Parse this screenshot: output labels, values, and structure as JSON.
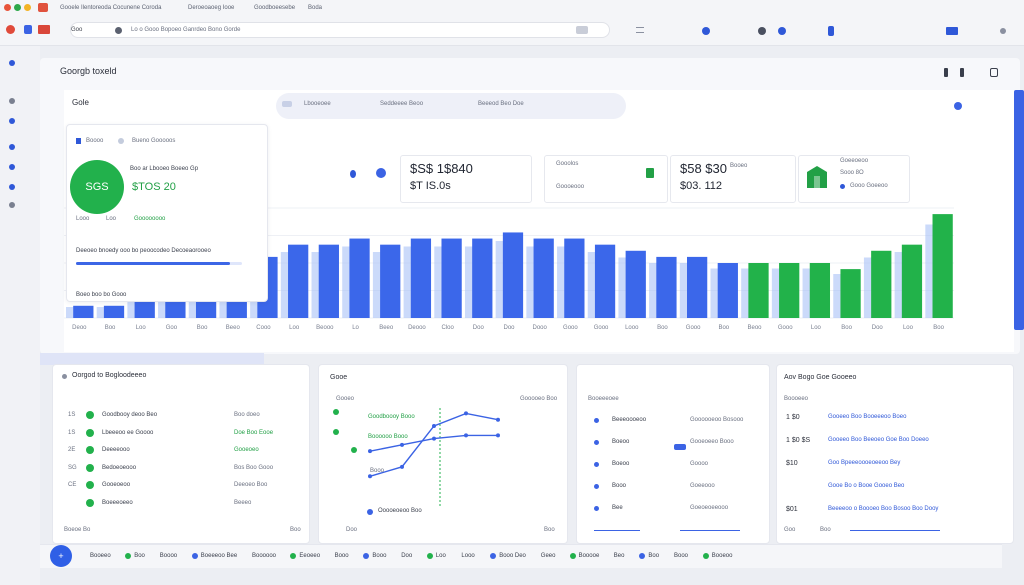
{
  "browser": {
    "tabs": [
      "Gooele Ilentoreoda Cocunene Coroda",
      "Deroeoaoeg Iooe",
      "Goodboeesebe",
      "Boda"
    ],
    "address": "Goo",
    "omnibox_hint": "Lo o Gooo Bopoeo Ganrdeo Bono Gorde"
  },
  "app": {
    "title": "Goorgb toxeld",
    "section": "Gole",
    "segments": [
      "Lbooeoee",
      "Seddeeee Beoo",
      "Beeeod Beo Doe"
    ]
  },
  "kpi": {
    "circle_value": "SGS",
    "header": "Bueno Gooooos",
    "label": "Boooo",
    "sublabel": "Boo ar Lbooeo Boeeo Gp",
    "value": "$TOS 20",
    "tag_left": "Looo",
    "tag_mid": "Loo",
    "tag_right": "Goooooooo",
    "progress_label": "Deeoeo bnoedy ooo bo peoocodeo Decoeaorooeo",
    "progress": 0.93,
    "footer": "Boeo boo bo Gooo"
  },
  "stats": [
    {
      "value": "$S$ 1$840",
      "sub": "$T IS.0s"
    },
    {
      "label": "Gooolos",
      "sub": "Goooeooo"
    },
    {
      "value": "$58 $30",
      "suffix": "Booeo",
      "sub": "$03. 112"
    },
    {
      "label": "Goeeoeoo",
      "sub": "Sooo 8O",
      "sub2": "Gooo Goeeoo"
    }
  ],
  "chart_data": {
    "type": "bar",
    "categories": [
      "Deoo",
      "Boo",
      "Loo",
      "Goo",
      "Boo",
      "Beeo",
      "Cooo",
      "Loo",
      "Beooo",
      "Lo",
      "Beeo",
      "Deooo",
      "Cloo",
      "Doo",
      "Doo",
      "Dooo",
      "Gooo",
      "Gooo",
      "Looo",
      "Boo",
      "Gooo",
      "Boo",
      "Beoo",
      "Gooo",
      "Loo",
      "Boo",
      "Doo",
      "Loo",
      "Boo"
    ],
    "series": [
      {
        "values": [
          2,
          2,
          4,
          4,
          3,
          3,
          10,
          12,
          12,
          13,
          12,
          13,
          13,
          13,
          14,
          13,
          13,
          12,
          11,
          10,
          10,
          9,
          9,
          9,
          9,
          8,
          11,
          12,
          17
        ]
      }
    ],
    "highlight_start": 22,
    "colors": {
      "blue": "#3b67ea",
      "light": "#a9c1f7",
      "green": "#22b24a"
    },
    "ylim": [
      0,
      18
    ],
    "grid": true
  },
  "panels": {
    "goals": {
      "title": "Oorgod to Bogloodeeeo",
      "rows": [
        {
          "id": "1S",
          "name": "Goodbooy deoo Beo",
          "status": "Boo doeo"
        },
        {
          "id": "1S",
          "name": "Lbeeeoo ee Goooo",
          "status": "Doe Boo Eooe"
        },
        {
          "id": "2E",
          "name": "Deeeeooo",
          "status": "Gooeoeo"
        },
        {
          "id": "SG",
          "name": "Bedoeoeooo",
          "status": "Bos Boo Gooo"
        },
        {
          "id": "CE",
          "name": "Gooeoeoo",
          "status": "Deeoeo Boo"
        },
        {
          "id": "",
          "name": "Boeeeoeeo",
          "status": "Beeeo"
        }
      ],
      "footer_left": "Boeoe Bo",
      "footer_right": "Boo"
    },
    "trend": {
      "title": "Gooe",
      "legend": "Gooeo",
      "legend_right": "Gooooeo Boo",
      "items": [
        "Goodboooy Booo",
        "Boooooo Booo",
        "Booo"
      ],
      "footer": "Ooooeoeoo Boo",
      "axis": [
        "Doo",
        "Boo"
      ],
      "line_a": [
        12,
        15,
        28,
        32,
        30
      ],
      "line_b": [
        20,
        22,
        24,
        25,
        25
      ]
    },
    "list": {
      "header": "Booeeeoee",
      "rows": [
        {
          "name": "Beeeoooeoo",
          "value": "Goooooeoo Bosooo"
        },
        {
          "name": "Boeoo",
          "value": "Gooeoeeo Booo"
        },
        {
          "name": "Boeoo",
          "value": "Goooo"
        },
        {
          "name": "Booo",
          "value": "Goeeooo"
        },
        {
          "name": "Bee",
          "value": "Goeoeoeeooo"
        }
      ]
    },
    "feed": {
      "title": "Aov Bogo Goe Gooeeo",
      "header_left": "Boooeeo",
      "rows": [
        {
          "id": "1 $0",
          "text": "Gooeeo Boo Booeeeoo Boeo"
        },
        {
          "id": "1 $0 $S",
          "text": "Gooeeo Boo Beeoeo Goe Boo Doeeo"
        },
        {
          "id": "$10",
          "text": "Goo Bpeeeoooeoeeoo Bey"
        },
        {
          "id": "",
          "text": "Gooe Bo o Booe Gooeo Beo"
        },
        {
          "id": "$01",
          "text": "Beeeeoo o Boooeo Boo Bosoo Boo Dooy"
        }
      ],
      "footer_left": "Goo",
      "footer_right": "Boo"
    }
  },
  "bottombar": {
    "items": [
      "Booeeo",
      "Boo",
      "Boooo",
      "Boeeeoo Bee",
      "Boooooo",
      "Eeoeeo",
      "Booo",
      "Booo",
      "Doo",
      "Loo",
      "Looo",
      "Booo Deo",
      "Geeo",
      "Booooe",
      "Beo",
      "Boo",
      "Booo",
      "Booeoo"
    ]
  }
}
